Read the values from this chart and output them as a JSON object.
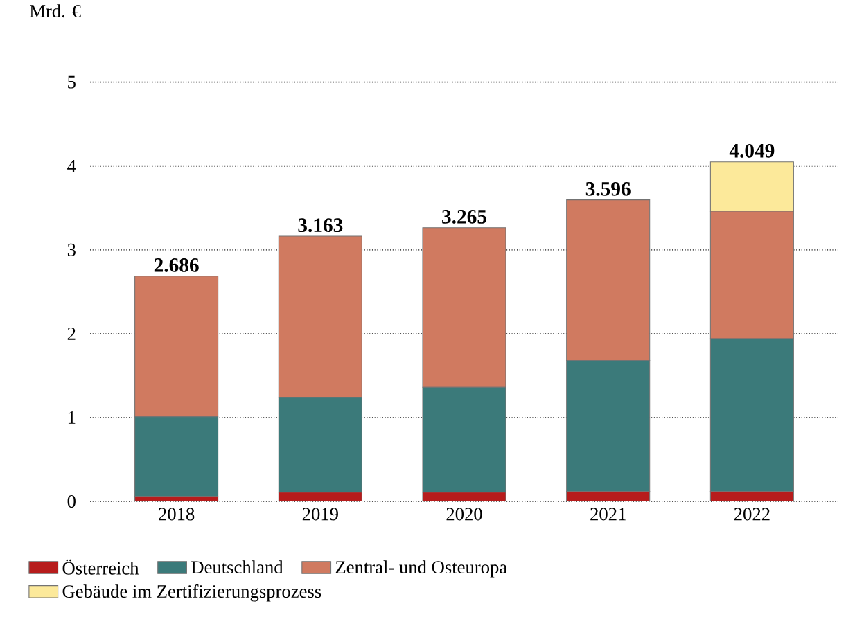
{
  "chart_data": {
    "type": "bar",
    "stacked": true,
    "ylabel": "Mrd. €",
    "categories": [
      "2018",
      "2019",
      "2020",
      "2021",
      "2022"
    ],
    "series": [
      {
        "name": "Österreich",
        "color": "#b71c1c",
        "values": [
          0.06,
          0.11,
          0.11,
          0.12,
          0.12
        ]
      },
      {
        "name": "Deutschland",
        "color": "#3b7a7a",
        "values": [
          0.95,
          1.13,
          1.25,
          1.56,
          1.82
        ]
      },
      {
        "name": "Zentral- und Osteuropa",
        "color": "#d07a60",
        "values": [
          1.676,
          1.923,
          1.905,
          1.916,
          1.52
        ]
      },
      {
        "name": "Gebäude im Zertifizierungsprozess",
        "color": "#fce99a",
        "values": [
          null,
          null,
          null,
          null,
          0.59
        ]
      }
    ],
    "totals": [
      "2.686",
      "3.163",
      "3.265",
      "3.596",
      "4.049"
    ],
    "ylim": [
      0,
      5
    ],
    "yticks": [
      0,
      1,
      2,
      3,
      4,
      5
    ],
    "grid": "y",
    "legend": "bottom"
  }
}
